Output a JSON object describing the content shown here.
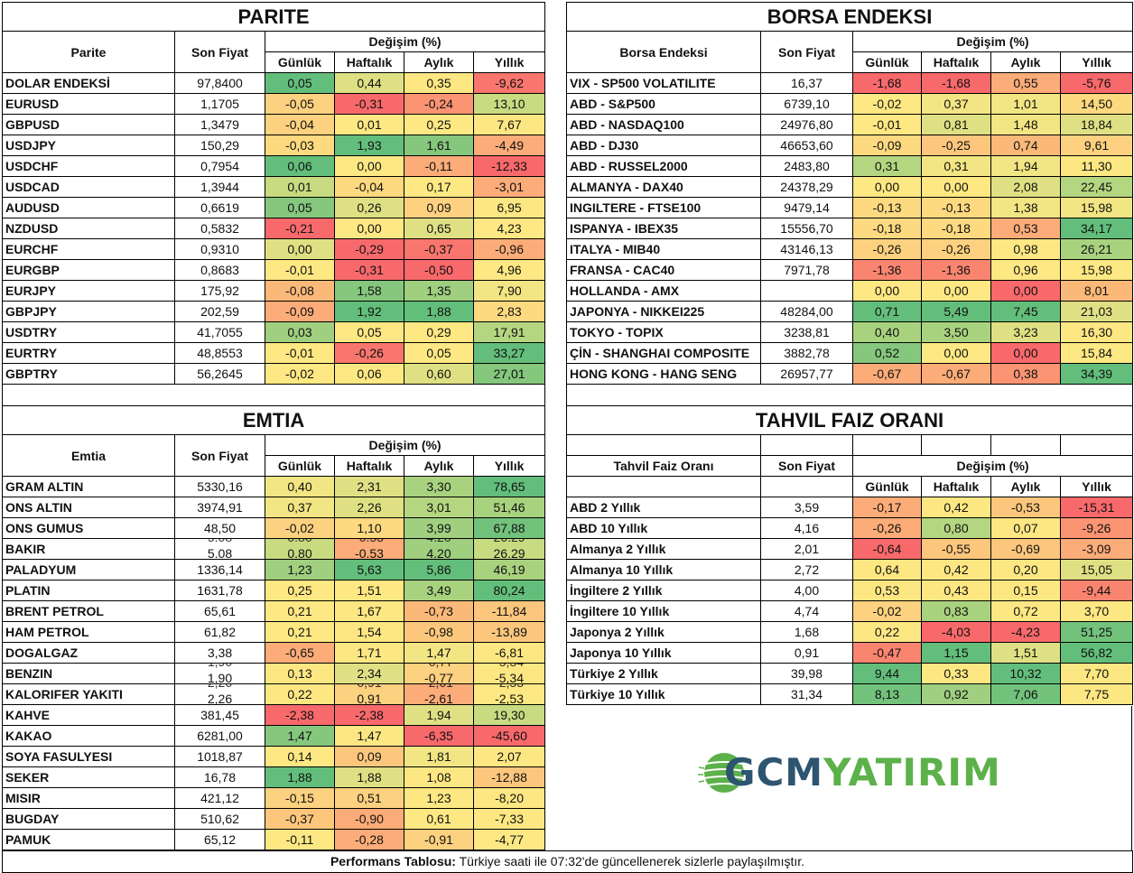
{
  "headers": {
    "son_fiyat": "Son Fiyat",
    "degisim": "Değişim (%)",
    "gunluk": "Günlük",
    "haftalik": "Haftalık",
    "aylik": "Aylık",
    "yillik": "Yıllık"
  },
  "colors": {
    "green_strong": "#63be7b",
    "green": "#85c77d",
    "green_light": "#b5d680",
    "yellow_green": "#dfe083",
    "yellow": "#fde783",
    "orange_light": "#fcd17f",
    "orange": "#fbac78",
    "red_light": "#f98570",
    "red": "#f8696b",
    "logo_dark": "#2d5570",
    "logo_green": "#5cb14a"
  },
  "parite": {
    "title": "PARITE",
    "col_label": "Parite",
    "rows": [
      {
        "name": "DOLAR ENDEKSİ",
        "price": "97,8400",
        "d": "0,05",
        "w": "0,44",
        "m": "0,35",
        "y": "-9,62",
        "c": [
          "#63be7b",
          "#dfe083",
          "#fde783",
          "#f8766d"
        ]
      },
      {
        "name": "EURUSD",
        "price": "1,1705",
        "d": "-0,05",
        "w": "-0,31",
        "m": "-0,24",
        "y": "13,10",
        "c": [
          "#fcd17f",
          "#f8696b",
          "#fa9473",
          "#c9db81"
        ]
      },
      {
        "name": "GBPUSD",
        "price": "1,3479",
        "d": "-0,04",
        "w": "0,01",
        "m": "0,25",
        "y": "7,67",
        "c": [
          "#fcd17f",
          "#fee883",
          "#fee883",
          "#fde783"
        ]
      },
      {
        "name": "USDJPY",
        "price": "150,29",
        "d": "-0,03",
        "w": "1,93",
        "m": "1,61",
        "y": "-4,49",
        "c": [
          "#fdd980",
          "#63be7b",
          "#85c77d",
          "#fbac78"
        ]
      },
      {
        "name": "USDCHF",
        "price": "0,7954",
        "d": "0,06",
        "w": "0,00",
        "m": "-0,11",
        "y": "-12,33",
        "c": [
          "#63be7b",
          "#fee883",
          "#fbac78",
          "#f8696b"
        ]
      },
      {
        "name": "USDCAD",
        "price": "1,3944",
        "d": "0,01",
        "w": "-0,04",
        "m": "0,17",
        "y": "-3,01",
        "c": [
          "#c9db81",
          "#fdd980",
          "#fee883",
          "#fbac78"
        ]
      },
      {
        "name": "AUDUSD",
        "price": "0,6619",
        "d": "0,05",
        "w": "0,26",
        "m": "0,09",
        "y": "6,95",
        "c": [
          "#85c77d",
          "#dfe083",
          "#fdd17f",
          "#fde783"
        ]
      },
      {
        "name": "NZDUSD",
        "price": "0,5832",
        "d": "-0,21",
        "w": "0,00",
        "m": "0,65",
        "y": "4,23",
        "c": [
          "#f8696b",
          "#fee883",
          "#dfe083",
          "#fee883"
        ]
      },
      {
        "name": "EURCHF",
        "price": "0,9310",
        "d": "0,00",
        "w": "-0,29",
        "m": "-0,37",
        "y": "-0,96",
        "c": [
          "#dfe083",
          "#f8696b",
          "#f8766d",
          "#fbac78"
        ]
      },
      {
        "name": "EURGBP",
        "price": "0,8683",
        "d": "-0,01",
        "w": "-0,31",
        "m": "-0,50",
        "y": "4,96",
        "c": [
          "#fee883",
          "#f8696b",
          "#f8696b",
          "#fee883"
        ]
      },
      {
        "name": "EURJPY",
        "price": "175,92",
        "d": "-0,08",
        "w": "1,58",
        "m": "1,35",
        "y": "7,90",
        "c": [
          "#fbb979",
          "#85c77d",
          "#9fcf7f",
          "#f2e583"
        ]
      },
      {
        "name": "GBPJPY",
        "price": "202,59",
        "d": "-0,09",
        "w": "1,92",
        "m": "1,88",
        "y": "2,83",
        "c": [
          "#fbac78",
          "#63be7b",
          "#63be7b",
          "#fdd980"
        ]
      },
      {
        "name": "USDTRY",
        "price": "41,7055",
        "d": "0,03",
        "w": "0,05",
        "m": "0,29",
        "y": "17,91",
        "c": [
          "#9fcf7f",
          "#fee883",
          "#fee883",
          "#b5d680"
        ]
      },
      {
        "name": "EURTRY",
        "price": "48,8553",
        "d": "-0,01",
        "w": "-0,26",
        "m": "0,05",
        "y": "33,27",
        "c": [
          "#fee883",
          "#f8766d",
          "#fee883",
          "#63be7b"
        ]
      },
      {
        "name": "GBPTRY",
        "price": "56,2645",
        "d": "-0,02",
        "w": "0,06",
        "m": "0,60",
        "y": "27,01",
        "c": [
          "#fee883",
          "#fee883",
          "#dfe083",
          "#85c77d"
        ]
      }
    ]
  },
  "borsa": {
    "title": "BORSA ENDEKSI",
    "col_label": "Borsa Endeksi",
    "rows": [
      {
        "name": "VIX  - SP500 VOLATILITE",
        "price": "16,37",
        "d": "-1,68",
        "w": "-1,68",
        "m": "0,55",
        "y": "-5,76",
        "c": [
          "#f8696b",
          "#f8696b",
          "#fbac78",
          "#f8696b"
        ]
      },
      {
        "name": "ABD - S&P500",
        "price": "6739,10",
        "d": "-0,02",
        "w": "0,37",
        "m": "1,01",
        "y": "14,50",
        "c": [
          "#fee883",
          "#f2e583",
          "#f2e583",
          "#fdd980"
        ]
      },
      {
        "name": "ABD - NASDAQ100",
        "price": "24976,80",
        "d": "-0,01",
        "w": "0,81",
        "m": "1,48",
        "y": "18,84",
        "c": [
          "#fee883",
          "#dfe083",
          "#f2e583",
          "#dfe083"
        ]
      },
      {
        "name": "ABD - DJ30",
        "price": "46653,60",
        "d": "-0,09",
        "w": "-0,25",
        "m": "0,74",
        "y": "9,61",
        "c": [
          "#fdd980",
          "#fcc77d",
          "#fbb979",
          "#fdd17f"
        ]
      },
      {
        "name": "ABD - RUSSEL2000",
        "price": "2483,80",
        "d": "0,31",
        "w": "0,31",
        "m": "1,94",
        "y": "11,30",
        "c": [
          "#b5d680",
          "#f2e583",
          "#f2e583",
          "#fde783"
        ]
      },
      {
        "name": "ALMANYA - DAX40",
        "price": "24378,29",
        "d": "0,00",
        "w": "0,00",
        "m": "2,08",
        "y": "22,45",
        "c": [
          "#fee883",
          "#fee883",
          "#dfe083",
          "#b5d680"
        ]
      },
      {
        "name": "INGILTERE - FTSE100",
        "price": "9479,14",
        "d": "-0,13",
        "w": "-0,13",
        "m": "1,38",
        "y": "15,98",
        "c": [
          "#fdd980",
          "#fdd980",
          "#f2e583",
          "#f2e583"
        ]
      },
      {
        "name": "ISPANYA - IBEX35",
        "price": "15556,70",
        "d": "-0,18",
        "w": "-0,18",
        "m": "0,53",
        "y": "34,17",
        "c": [
          "#fdd980",
          "#fdd980",
          "#fbac78",
          "#63be7b"
        ]
      },
      {
        "name": "ITALYA - MIB40",
        "price": "43146,13",
        "d": "-0,26",
        "w": "-0,26",
        "m": "0,98",
        "y": "26,21",
        "c": [
          "#fcd17f",
          "#fcd17f",
          "#fee883",
          "#a9d27f"
        ]
      },
      {
        "name": "FRANSA - CAC40",
        "price": "7971,78",
        "d": "-1,36",
        "w": "-1,36",
        "m": "0,96",
        "y": "15,98",
        "c": [
          "#f98570",
          "#f98570",
          "#fee883",
          "#fee883"
        ]
      },
      {
        "name": "HOLLANDA - AMX",
        "price": "",
        "d": "0,00",
        "w": "0,00",
        "m": "0,00",
        "y": "8,01",
        "c": [
          "#fee883",
          "#fee883",
          "#f8696b",
          "#fbb979"
        ]
      },
      {
        "name": "JAPONYA - NIKKEI225",
        "price": "48284,00",
        "d": "0,71",
        "w": "5,49",
        "m": "7,45",
        "y": "21,03",
        "c": [
          "#63be7b",
          "#63be7b",
          "#63be7b",
          "#dfe083"
        ]
      },
      {
        "name": "TOKYO - TOPIX",
        "price": "3238,81",
        "d": "0,40",
        "w": "3,50",
        "m": "3,23",
        "y": "16,30",
        "c": [
          "#a9d27f",
          "#a9d27f",
          "#dfe083",
          "#fde783"
        ]
      },
      {
        "name": "ÇİN - SHANGHAI COMPOSITE",
        "price": "3882,78",
        "d": "0,52",
        "w": "0,00",
        "m": "0,00",
        "y": "15,84",
        "c": [
          "#85c77d",
          "#fee883",
          "#f8696b",
          "#fee883"
        ]
      },
      {
        "name": "HONG KONG - HANG SENG",
        "price": "26957,77",
        "d": "-0,67",
        "w": "-0,67",
        "m": "0,38",
        "y": "34,39",
        "c": [
          "#fbac78",
          "#fbac78",
          "#fa9473",
          "#63be7b"
        ]
      }
    ]
  },
  "emtia": {
    "title": "EMTIA",
    "col_label": "Emtia",
    "rows": [
      {
        "name": "GRAM ALTIN",
        "price": "5330,16",
        "d": "0,40",
        "w": "2,31",
        "m": "3,30",
        "y": "78,65",
        "c": [
          "#f2e583",
          "#dfe083",
          "#a9d27f",
          "#63be7b"
        ]
      },
      {
        "name": "ONS ALTIN",
        "price": "3974,91",
        "d": "0,37",
        "w": "2,26",
        "m": "3,01",
        "y": "51,46",
        "c": [
          "#f2e583",
          "#dfe083",
          "#b5d680",
          "#a9d27f"
        ]
      },
      {
        "name": "ONS GUMUS",
        "price": "48,50",
        "d": "-0,02",
        "w": "1,10",
        "m": "3,99",
        "y": "67,88",
        "c": [
          "#fcd17f",
          "#fdd980",
          "#9fcf7f",
          "#72c27c"
        ]
      },
      {
        "name": "BAKIR",
        "price": "5.08",
        "d": "0.80",
        "w": "-0.53",
        "m": "4.20",
        "y": "26.29",
        "ghost": true,
        "c": [
          "#c9db81",
          "#fbac78",
          "#9fcf7f",
          "#c9db81"
        ]
      },
      {
        "name": "PALADYUM",
        "price": "1336,14",
        "d": "1,23",
        "w": "5,63",
        "m": "5,86",
        "y": "46,19",
        "c": [
          "#9fcf7f",
          "#63be7b",
          "#63be7b",
          "#a9d27f"
        ]
      },
      {
        "name": "PLATIN",
        "price": "1631,78",
        "d": "0,25",
        "w": "1,51",
        "m": "3,49",
        "y": "80,24",
        "c": [
          "#fee883",
          "#fee883",
          "#a9d27f",
          "#63be7b"
        ]
      },
      {
        "name": "BRENT PETROL",
        "price": "65,61",
        "d": "0,21",
        "w": "1,67",
        "m": "-0,73",
        "y": "-11,84",
        "c": [
          "#fee883",
          "#fde783",
          "#fbb979",
          "#fcc77d"
        ]
      },
      {
        "name": "HAM PETROL",
        "price": "61,82",
        "d": "0,21",
        "w": "1,54",
        "m": "-0,98",
        "y": "-13,89",
        "c": [
          "#fee883",
          "#fde783",
          "#fcc77d",
          "#fcc77d"
        ]
      },
      {
        "name": "DOGALGAZ",
        "price": "3,38",
        "d": "-0,65",
        "w": "1,71",
        "m": "1,47",
        "y": "-6,81",
        "c": [
          "#fbac78",
          "#fde783",
          "#f2e583",
          "#fde783"
        ]
      },
      {
        "name": "BENZIN",
        "price": "1,90",
        "d": "0,13",
        "w": "2,34",
        "m": "-0,77",
        "y": "-5,34",
        "ghost": true,
        "c": [
          "#fde783",
          "#dfe083",
          "#fcd17f",
          "#fde783"
        ]
      },
      {
        "name": "KALORIFER YAKITI",
        "price": "2,26",
        "d": "0,22",
        "w": "0,91",
        "m": "-2,61",
        "y": "-2,53",
        "ghost": true,
        "c": [
          "#fde783",
          "#fcd17f",
          "#fbac78",
          "#fee883"
        ]
      },
      {
        "name": "KAHVE",
        "price": "381,45",
        "d": "-2,38",
        "w": "-2,38",
        "m": "1,94",
        "y": "19,30",
        "c": [
          "#f8696b",
          "#f8696b",
          "#dfe083",
          "#c9db81"
        ]
      },
      {
        "name": "KAKAO",
        "price": "6281,00",
        "d": "1,47",
        "w": "1,47",
        "m": "-6,35",
        "y": "-45,60",
        "c": [
          "#85c77d",
          "#fde783",
          "#f8696b",
          "#f8696b"
        ]
      },
      {
        "name": "SOYA FASULYESI",
        "price": "1018,87",
        "d": "0,14",
        "w": "0,09",
        "m": "1,81",
        "y": "2,07",
        "c": [
          "#fee883",
          "#fcc77d",
          "#f2e583",
          "#fde783"
        ]
      },
      {
        "name": "SEKER",
        "price": "16,78",
        "d": "1,88",
        "w": "1,88",
        "m": "1,08",
        "y": "-12,88",
        "c": [
          "#63be7b",
          "#dfe083",
          "#fde783",
          "#fcc77d"
        ]
      },
      {
        "name": "MISIR",
        "price": "421,12",
        "d": "-0,15",
        "w": "0,51",
        "m": "1,23",
        "y": "-8,20",
        "c": [
          "#fcd17f",
          "#fcd17f",
          "#fde783",
          "#fde783"
        ]
      },
      {
        "name": "BUGDAY",
        "price": "510,62",
        "d": "-0,37",
        "w": "-0,90",
        "m": "0,61",
        "y": "-7,33",
        "c": [
          "#fcc77d",
          "#fbac78",
          "#fee883",
          "#fde783"
        ]
      },
      {
        "name": "PAMUK",
        "price": "65,12",
        "d": "-0,11",
        "w": "-0,28",
        "m": "-0,91",
        "y": "-4,77",
        "c": [
          "#fee883",
          "#fbac78",
          "#fcd17f",
          "#fee883"
        ]
      }
    ]
  },
  "tahvil": {
    "title": "TAHVIL FAIZ ORANI",
    "col_label": "Tahvil Faiz Oranı",
    "rows": [
      {
        "name": "ABD 2 Yıllık",
        "price": "3,59",
        "d": "-0,17",
        "w": "0,42",
        "m": "-0,53",
        "y": "-15,31",
        "c": [
          "#fbac78",
          "#fde783",
          "#fcc77d",
          "#f8696b"
        ]
      },
      {
        "name": "ABD 10 Yıllık",
        "price": "4,16",
        "d": "-0,26",
        "w": "0,80",
        "m": "0,07",
        "y": "-9,26",
        "c": [
          "#fbac78",
          "#b5d680",
          "#fde783",
          "#fa9473"
        ]
      },
      {
        "name": "Almanya 2 Yıllık",
        "price": "2,01",
        "d": "-0,64",
        "w": "-0,55",
        "m": "-0,69",
        "y": "-3,09",
        "c": [
          "#f8696b",
          "#fcc77d",
          "#fcc77d",
          "#fbac78"
        ]
      },
      {
        "name": "Almanya 10 Yıllık",
        "price": "2,72",
        "d": "0,64",
        "w": "0,42",
        "m": "0,20",
        "y": "15,05",
        "c": [
          "#fde783",
          "#fde783",
          "#fde783",
          "#dfe083"
        ]
      },
      {
        "name": "İngiltere 2 Yıllık",
        "price": "4,00",
        "d": "0,53",
        "w": "0,43",
        "m": "0,15",
        "y": "-9,44",
        "c": [
          "#fde783",
          "#fde783",
          "#fde783",
          "#f98570"
        ]
      },
      {
        "name": "İngiltere 10 Yıllık",
        "price": "4,74",
        "d": "-0,02",
        "w": "0,83",
        "m": "0,72",
        "y": "3,70",
        "c": [
          "#fcd17f",
          "#a9d27f",
          "#fde783",
          "#fde783"
        ]
      },
      {
        "name": "Japonya 2 Yıllık",
        "price": "1,68",
        "d": "0,22",
        "w": "-4,03",
        "m": "-4,23",
        "y": "51,25",
        "c": [
          "#fde783",
          "#f8696b",
          "#f8696b",
          "#72c27c"
        ]
      },
      {
        "name": "Japonya 10 Yıllık",
        "price": "0,91",
        "d": "-0,47",
        "w": "1,15",
        "m": "1,51",
        "y": "56,82",
        "c": [
          "#f98570",
          "#63be7b",
          "#dfe083",
          "#63be7b"
        ]
      },
      {
        "name": "Türkiye 2 Yıllık",
        "price": "39,98",
        "d": "9,44",
        "w": "0,33",
        "m": "10,32",
        "y": "7,70",
        "c": [
          "#63be7b",
          "#fde783",
          "#63be7b",
          "#fde783"
        ]
      },
      {
        "name": "Türkiye 10 Yıllık",
        "price": "31,34",
        "d": "8,13",
        "w": "0,92",
        "m": "7,06",
        "y": "7,75",
        "c": [
          "#72c27c",
          "#9fcf7f",
          "#72c27c",
          "#fde783"
        ]
      }
    ]
  },
  "logo": {
    "part1": "GCM",
    "part2": "YATIRIM"
  },
  "footer": {
    "label": "Performans Tablosu:",
    "text": " Türkiye saati ile 07:32'de güncellenerek sizlerle paylaşılmıştır."
  }
}
